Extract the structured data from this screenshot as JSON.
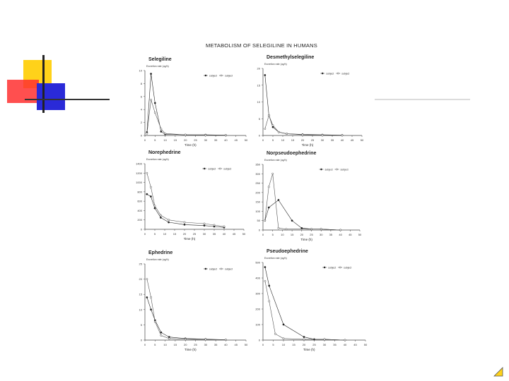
{
  "slide": {
    "title": "METABOLISM OF SELEGILINE IN HUMANS"
  },
  "chart_data": [
    {
      "type": "line",
      "title": "Selegiline",
      "ylabel": "Excretion rate (ug/h)",
      "xlabel": "Time (h)",
      "xlim": [
        0,
        50
      ],
      "ylim": [
        0,
        10
      ],
      "xticks": [
        0,
        5,
        10,
        15,
        20,
        25,
        30,
        35,
        40,
        45,
        50
      ],
      "yticks": [
        0,
        2,
        4,
        6,
        8,
        10
      ],
      "legend": [
        "subject",
        "subject"
      ],
      "series": [
        {
          "name": "subject",
          "marker": "filled",
          "x": [
            1,
            3,
            5,
            8,
            10,
            20,
            30,
            40
          ],
          "y": [
            0.5,
            9.5,
            5.0,
            0.6,
            0.2,
            0.1,
            0.1,
            0.05
          ]
        },
        {
          "name": "subject",
          "marker": "open",
          "x": [
            1,
            3,
            5,
            8,
            10,
            20,
            30,
            40
          ],
          "y": [
            0.3,
            5.5,
            3.5,
            1.0,
            0.3,
            0.1,
            0.05,
            0.05
          ]
        }
      ]
    },
    {
      "type": "line",
      "title": "Desmethylselegiline",
      "ylabel": "Excretion rate (ug/h)",
      "xlabel": "Time (h)",
      "xlim": [
        0,
        50
      ],
      "ylim": [
        0,
        20
      ],
      "xticks": [
        0,
        5,
        10,
        15,
        20,
        25,
        30,
        35,
        40,
        45,
        50
      ],
      "yticks": [
        0,
        5,
        10,
        15,
        20
      ],
      "legend": [
        "subject",
        "subject"
      ],
      "series": [
        {
          "name": "subject",
          "marker": "filled",
          "x": [
            1,
            3,
            5,
            8,
            12,
            20,
            30,
            40
          ],
          "y": [
            18,
            6.0,
            2.5,
            1.0,
            0.5,
            0.3,
            0.2,
            0.1
          ]
        },
        {
          "name": "subject",
          "marker": "open",
          "x": [
            1,
            3,
            5,
            8,
            12,
            20,
            30,
            40
          ],
          "y": [
            2.0,
            6.0,
            3.0,
            1.0,
            0.5,
            0.2,
            0.1,
            0.05
          ]
        }
      ]
    },
    {
      "type": "line",
      "title": "Norephedrine",
      "ylabel": "Excretion rate (ug/h)",
      "xlabel": "Time (h)",
      "xlim": [
        0,
        50
      ],
      "ylim": [
        0,
        1400
      ],
      "xticks": [
        0,
        5,
        10,
        15,
        20,
        25,
        30,
        35,
        40,
        45,
        50
      ],
      "yticks": [
        0,
        200,
        400,
        600,
        800,
        1000,
        1200,
        1400
      ],
      "legend": [
        "subject",
        "subject"
      ],
      "series": [
        {
          "name": "subject",
          "marker": "filled",
          "x": [
            1,
            3,
            5,
            8,
            12,
            20,
            30,
            35,
            40
          ],
          "y": [
            750,
            700,
            450,
            250,
            150,
            100,
            80,
            60,
            40
          ]
        },
        {
          "name": "subject",
          "marker": "open",
          "x": [
            1,
            3,
            5,
            8,
            12,
            20,
            30,
            35,
            40
          ],
          "y": [
            1200,
            900,
            500,
            300,
            200,
            150,
            120,
            90,
            60
          ]
        }
      ]
    },
    {
      "type": "line",
      "title": "Norpseudoephedrine",
      "ylabel": "Excretion rate (ug/h)",
      "xlabel": "Time (h)",
      "xlim": [
        0,
        50
      ],
      "ylim": [
        0,
        350
      ],
      "xticks": [
        0,
        5,
        10,
        15,
        20,
        25,
        30,
        35,
        40,
        45,
        50
      ],
      "yticks": [
        0,
        50,
        100,
        150,
        200,
        250,
        300,
        350
      ],
      "legend": [
        "subject",
        "subject"
      ],
      "series": [
        {
          "name": "subject",
          "marker": "filled",
          "x": [
            1,
            3,
            8,
            15,
            20,
            25,
            30,
            40
          ],
          "y": [
            50,
            120,
            160,
            50,
            10,
            5,
            5,
            0
          ]
        },
        {
          "name": "subject",
          "marker": "open",
          "x": [
            1,
            3,
            5,
            8,
            12,
            25,
            30,
            40
          ],
          "y": [
            50,
            230,
            300,
            10,
            5,
            5,
            5,
            0
          ]
        }
      ]
    },
    {
      "type": "line",
      "title": "Ephedrine",
      "ylabel": "Excretion rate (ug/h)",
      "xlabel": "Time (h)",
      "xlim": [
        0,
        50
      ],
      "ylim": [
        0,
        25
      ],
      "xticks": [
        0,
        5,
        10,
        15,
        20,
        25,
        30,
        35,
        40,
        45,
        50
      ],
      "yticks": [
        0,
        5,
        10,
        15,
        20,
        25
      ],
      "legend": [
        "subject",
        "subject"
      ],
      "series": [
        {
          "name": "subject",
          "marker": "filled",
          "x": [
            1,
            3,
            5,
            8,
            12,
            20,
            30,
            40
          ],
          "y": [
            14,
            10,
            6.5,
            2.5,
            1.0,
            0.5,
            0.3,
            0.1
          ]
        },
        {
          "name": "subject",
          "marker": "open",
          "x": [
            1,
            3,
            5,
            8,
            12,
            20,
            30,
            40
          ],
          "y": [
            20,
            14,
            6.0,
            1.5,
            0.5,
            0.3,
            0.2,
            0.1
          ]
        }
      ]
    },
    {
      "type": "line",
      "title": "Pseudoephedrine",
      "ylabel": "Excretion rate (ug/h)",
      "xlabel": "Time (h)",
      "xlim": [
        0,
        50
      ],
      "ylim": [
        0,
        500
      ],
      "xticks": [
        0,
        5,
        10,
        15,
        20,
        25,
        30,
        35,
        40,
        45,
        50
      ],
      "yticks": [
        0,
        100,
        200,
        300,
        400,
        500
      ],
      "legend": [
        "subject",
        "subject"
      ],
      "series": [
        {
          "name": "subject",
          "marker": "filled",
          "x": [
            1,
            3,
            10,
            20,
            25,
            30,
            40
          ],
          "y": [
            470,
            350,
            100,
            20,
            5,
            5,
            0
          ]
        },
        {
          "name": "subject",
          "marker": "open",
          "x": [
            1,
            3,
            6,
            10,
            20,
            30,
            40
          ],
          "y": [
            380,
            250,
            40,
            10,
            5,
            5,
            0
          ]
        }
      ]
    }
  ]
}
